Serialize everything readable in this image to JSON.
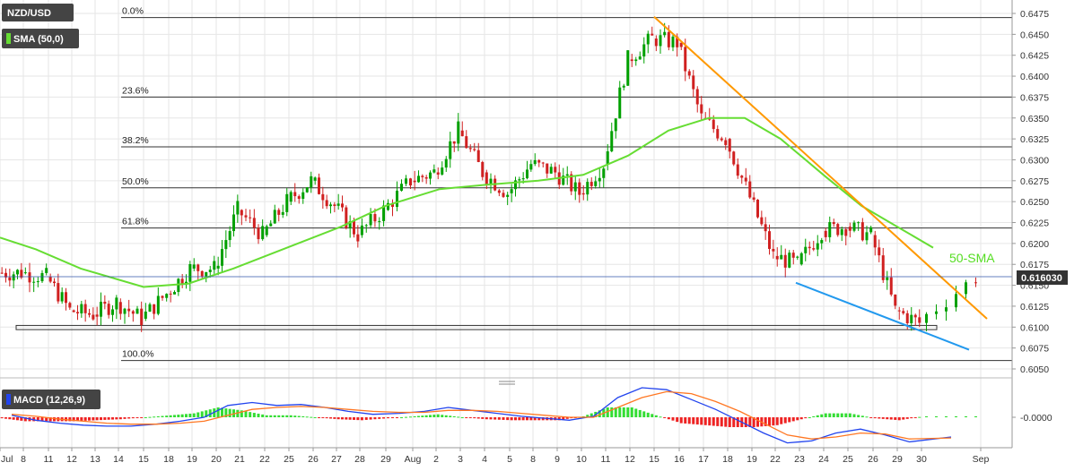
{
  "badges": {
    "symbol": "NZD/USD",
    "sma_indicator": "SMA (50,0)",
    "macd_indicator": "MACD (12,26,9)"
  },
  "price_box": "0.616030",
  "annotations": {
    "sma_label": "50-SMA"
  },
  "fibonacci": [
    {
      "label": "0.0%",
      "price": 0.647
    },
    {
      "label": "23.6%",
      "price": 0.6375
    },
    {
      "label": "38.2%",
      "price": 0.63155
    },
    {
      "label": "50.0%",
      "price": 0.62665
    },
    {
      "label": "61.8%",
      "price": 0.62185
    },
    {
      "label": "100.0%",
      "price": 0.606
    }
  ],
  "price_axis_ticks": [
    "0.6475",
    "0.6450",
    "0.6425",
    "0.6400",
    "0.6375",
    "0.6350",
    "0.6325",
    "0.6300",
    "0.6275",
    "0.6250",
    "0.6225",
    "0.6200",
    "0.6175",
    "0.6150",
    "0.6125",
    "0.6100",
    "0.6075",
    "0.6050"
  ],
  "macd_axis_tick": "-0.0000",
  "x_axis_labels": [
    "Jul",
    "8",
    "11",
    "12",
    "13",
    "14",
    "15",
    "18",
    "19",
    "20",
    "21",
    "22",
    "25",
    "26",
    "27",
    "28",
    "29",
    "Aug",
    "2",
    "3",
    "4",
    "5",
    "8",
    "9",
    "10",
    "11",
    "12",
    "15",
    "16",
    "17",
    "18",
    "19",
    "22",
    "23",
    "24",
    "25",
    "26",
    "29",
    "30",
    "Sep"
  ],
  "colors": {
    "up_candle": "#00a000",
    "down_candle": "#d02020",
    "sma": "#66dd33",
    "resistance": "#ff9900",
    "support": "#2299ee",
    "macd_line": "#2244ee",
    "signal_line": "#ff7722",
    "hist_pos": "#33dd33",
    "hist_neg": "#ee2222",
    "badge_bg": "#444444"
  },
  "chart_data": [
    {
      "type": "candlestick",
      "title": "NZD/USD",
      "ylim": [
        0.604,
        0.6485
      ],
      "x": [
        "Jul",
        "8",
        "11",
        "12",
        "13",
        "14",
        "15",
        "18",
        "19",
        "20",
        "21",
        "22",
        "25",
        "26",
        "27",
        "28",
        "29",
        "Aug",
        "2",
        "3",
        "4",
        "5",
        "8",
        "9",
        "10",
        "11",
        "12",
        "15",
        "16",
        "17",
        "18",
        "19",
        "22",
        "23",
        "24",
        "25",
        "26",
        "29",
        "30"
      ],
      "daily_close": [
        0.6165,
        0.616,
        0.612,
        0.6115,
        0.613,
        0.611,
        0.614,
        0.617,
        0.617,
        0.624,
        0.621,
        0.625,
        0.6275,
        0.6245,
        0.621,
        0.624,
        0.6275,
        0.6285,
        0.6335,
        0.6285,
        0.626,
        0.6295,
        0.6285,
        0.626,
        0.6295,
        0.642,
        0.6445,
        0.644,
        0.635,
        0.6325,
        0.6255,
        0.6185,
        0.6175,
        0.6215,
        0.622,
        0.621,
        0.612,
        0.6105,
        0.616
      ],
      "key_levels": {
        "horizontal_support_band": [
          0.6097,
          0.6102
        ]
      },
      "overlays": [
        {
          "name": "50-SMA",
          "type": "sma",
          "period": 50
        }
      ],
      "axis_ticks": [
        "0.6475",
        "0.6450",
        "0.6425",
        "0.6400",
        "0.6375",
        "0.6350",
        "0.6325",
        "0.6300",
        "0.6275",
        "0.6250",
        "0.6225",
        "0.6200",
        "0.6175",
        "0.6150",
        "0.6125",
        "0.6100",
        "0.6075",
        "0.6050"
      ]
    },
    {
      "type": "line",
      "title": "MACD (12,26,9)",
      "series": [
        {
          "name": "MACD",
          "values": [
            0.0002,
            -0.0003,
            -0.0006,
            -0.0008,
            -0.0009,
            -0.0009,
            -0.0007,
            -0.0004,
            0.0,
            0.0012,
            0.0015,
            0.0012,
            0.0013,
            0.001,
            0.0006,
            0.0003,
            0.0004,
            0.0006,
            0.001,
            0.0007,
            0.0004,
            0.0001,
            -0.0001,
            -0.0003,
            0.0001,
            0.002,
            0.003,
            0.0028,
            0.0018,
            0.0008,
            -0.0004,
            -0.0016,
            -0.0026,
            -0.0024,
            -0.0016,
            -0.0012,
            -0.0018,
            -0.0025,
            -0.002
          ]
        },
        {
          "name": "Signal",
          "values": [
            0.0003,
            0.0001,
            -0.0002,
            -0.0004,
            -0.0006,
            -0.0007,
            -0.0007,
            -0.0006,
            -0.0004,
            0.0002,
            0.0008,
            0.001,
            0.0011,
            0.001,
            0.0008,
            0.0006,
            0.0005,
            0.0005,
            0.0007,
            0.0007,
            0.0006,
            0.0004,
            0.0002,
            0.0,
            0.0,
            0.001,
            0.002,
            0.0026,
            0.0024,
            0.0016,
            0.0006,
            -0.0006,
            -0.0018,
            -0.0022,
            -0.002,
            -0.0016,
            -0.0017,
            -0.0022,
            -0.0021
          ]
        }
      ],
      "histogram": [
        -0.0001,
        -0.0004,
        -0.0004,
        -0.0004,
        -0.0003,
        -0.0002,
        0.0,
        0.0002,
        0.0004,
        0.001,
        0.0007,
        0.0002,
        0.0002,
        0.0,
        -0.0002,
        -0.0003,
        -0.0001,
        0.0001,
        0.0003,
        0.0,
        -0.0002,
        -0.0003,
        -0.0003,
        -0.0003,
        0.0001,
        0.001,
        0.001,
        0.0002,
        -0.0006,
        -0.0008,
        -0.001,
        -0.001,
        -0.0008,
        -0.0002,
        0.0004,
        0.0004,
        -0.0001,
        -0.0003,
        0.0001
      ],
      "axis_tick": "-0.0000"
    }
  ]
}
